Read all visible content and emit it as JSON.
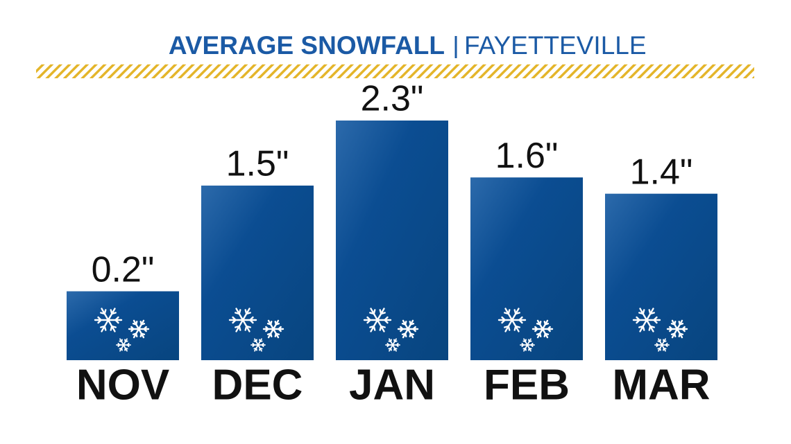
{
  "chart_data": {
    "type": "bar",
    "title": "AVERAGE SNOWFALL",
    "subtitle": "FAYETTEVILLE",
    "categories": [
      "NOV",
      "DEC",
      "JAN",
      "FEB",
      "MAR"
    ],
    "values": [
      0.2,
      1.5,
      2.3,
      1.6,
      1.4
    ],
    "value_labels": [
      "0.2\"",
      "1.5\"",
      "2.3\"",
      "1.6\"",
      "1.4\""
    ],
    "color": "#0b4d92"
  }
}
